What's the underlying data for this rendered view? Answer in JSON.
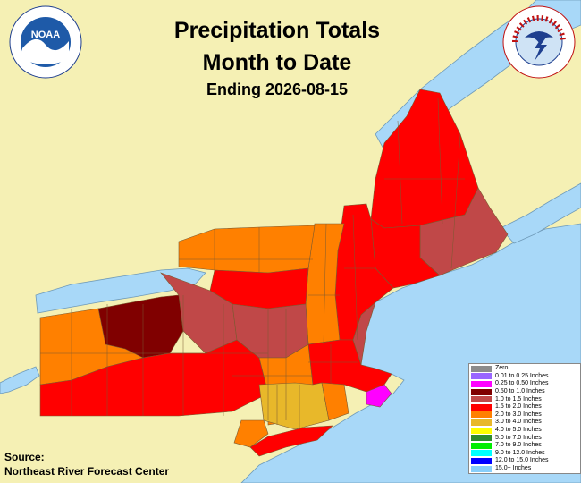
{
  "title": {
    "line1": "Precipitation Totals",
    "line2": "Month to Date",
    "line3": "Ending 2026-08-15"
  },
  "source": {
    "label": "Source:",
    "name": "Northeast River Forecast Center"
  },
  "logos": {
    "noaa_text": "NOAA",
    "noaa_ring_text": "NATIONAL OCEANIC AND ATMOSPHERIC ADMINISTRATION · U.S. DEPARTMENT OF COMMERCE",
    "nws_ring_text": "NATIONAL WEATHER SERVICE"
  },
  "legend": {
    "items": [
      {
        "label": "Zero",
        "color": "#8c8c8c"
      },
      {
        "label": "0.01 to 0.25 Inches",
        "color": "#9966ff"
      },
      {
        "label": "0.25 to 0.50 Inches",
        "color": "#ff00ff"
      },
      {
        "label": "0.50 to 1.0 Inches",
        "color": "#800000"
      },
      {
        "label": "1.0 to 1.5 Inches",
        "color": "#c04848"
      },
      {
        "label": "1.5 to 2.0 Inches",
        "color": "#ff0000"
      },
      {
        "label": "2.0 to 3.0 Inches",
        "color": "#ff8000"
      },
      {
        "label": "3.0 to 4.0 Inches",
        "color": "#e8b82a"
      },
      {
        "label": "4.0 to 5.0 Inches",
        "color": "#ffff00"
      },
      {
        "label": "5.0 to 7.0 Inches",
        "color": "#2e8b2e"
      },
      {
        "label": "7.0 to 9.0 Inches",
        "color": "#00ee00"
      },
      {
        "label": "9.0 to 12.0 Inches",
        "color": "#00ffff"
      },
      {
        "label": "12.0 to 15.0 Inches",
        "color": "#0000ff"
      },
      {
        "label": "15.0+ Inches",
        "color": "#87cefa"
      }
    ]
  },
  "colors": {
    "land_background": "#f5f0b4",
    "water": "#a8d8f8",
    "county_border": "#7a5a30"
  }
}
